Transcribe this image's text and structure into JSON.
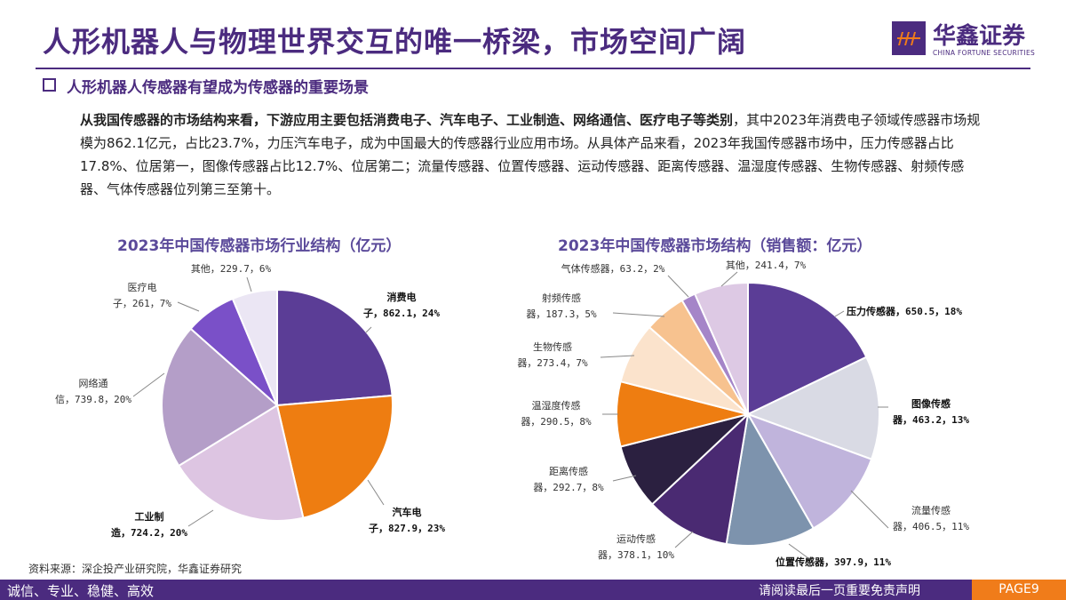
{
  "header": {
    "title": "人形机器人与物理世界交互的唯一桥梁，市场空间广阔",
    "logo_cn": "华鑫证券",
    "logo_en": "CHINA FORTUNE SECURITIES"
  },
  "subtitle": "人形机器人传感器有望成为传感器的重要场景",
  "body": {
    "bold": "从我国传感器的市场结构来看，下游应用主要包括消费电子、汽车电子、工业制造、网络通信、医疗电子等类别",
    "rest": "，其中2023年消费电子领域传感器市场规模为862.1亿元，占比23.7%，力压汽车电子，成为中国最大的传感器行业应用市场。从具体产品来看，2023年我国传感器市场中，压力传感器占比17.8%、位居第一，图像传感器占比12.7%、位居第二；流量传感器、位置传感器、运动传感器、距离传感器、温湿度传感器、生物传感器、射频传感器、气体传感器位列第三至第十。"
  },
  "chart_data": [
    {
      "type": "pie",
      "title": "2023年中国传感器市场行业结构（亿元）",
      "slices": [
        {
          "label": "消费电子",
          "value": 862.1,
          "pct": "24%",
          "text": [
            "消费电",
            "子，862.1，24%"
          ],
          "color": "#5b3d96"
        },
        {
          "label": "汽车电子",
          "value": 827.9,
          "pct": "23%",
          "text": [
            "汽车电",
            "子，827.9，23%"
          ],
          "color": "#ee7d11"
        },
        {
          "label": "工业制造",
          "value": 724.2,
          "pct": "20%",
          "text": [
            "工业制",
            "造，724.2，20%"
          ],
          "color": "#ddc5e2"
        },
        {
          "label": "网络通信",
          "value": 739.8,
          "pct": "20%",
          "text": [
            "网络通",
            "信，739.8，20%"
          ],
          "color": "#b49ec8"
        },
        {
          "label": "医疗电子",
          "value": 261,
          "pct": "7%",
          "text": [
            "医疗电",
            "子，261，7%"
          ],
          "color": "#7a50c8"
        },
        {
          "label": "其他",
          "value": 229.7,
          "pct": "6%",
          "text": [
            "其他，229.7，6%"
          ],
          "color": "#ebe6f4"
        }
      ]
    },
    {
      "type": "pie",
      "title": "2023年中国传感器市场结构（销售额：亿元）",
      "slices": [
        {
          "label": "压力传感器",
          "value": 650.5,
          "pct": "18%",
          "text": [
            "压力传感器，650.5，18%"
          ],
          "color": "#5b3d96"
        },
        {
          "label": "图像传感器",
          "value": 463.2,
          "pct": "13%",
          "text": [
            "图像传感",
            "器，463.2，13%"
          ],
          "color": "#d9dae4"
        },
        {
          "label": "流量传感器",
          "value": 406.5,
          "pct": "11%",
          "text": [
            "流量传感",
            "器，406.5，11%"
          ],
          "color": "#c0b4dc"
        },
        {
          "label": "位置传感器",
          "value": 397.9,
          "pct": "11%",
          "text": [
            "位置传感器，397.9，11%"
          ],
          "color": "#7d93ad"
        },
        {
          "label": "运动传感器",
          "value": 378.1,
          "pct": "10%",
          "text": [
            "运动传感",
            "器，378.1，10%"
          ],
          "color": "#4a2a72"
        },
        {
          "label": "距离传感器",
          "value": 292.7,
          "pct": "8%",
          "text": [
            "距离传感",
            "器，292.7，8%"
          ],
          "color": "#2b2040"
        },
        {
          "label": "温湿度传感器",
          "value": 290.5,
          "pct": "8%",
          "text": [
            "温湿度传感",
            "器，290.5，8%"
          ],
          "color": "#ee7d11"
        },
        {
          "label": "生物传感器",
          "value": 273.4,
          "pct": "7%",
          "text": [
            "生物传感",
            "器，273.4，7%"
          ],
          "color": "#fbe3cc"
        },
        {
          "label": "射频传感器",
          "value": 187.3,
          "pct": "5%",
          "text": [
            "射频传感",
            "器，187.3，5%"
          ],
          "color": "#f7c28f"
        },
        {
          "label": "气体传感器",
          "value": 63.2,
          "pct": "2%",
          "text": [
            "气体传感器，63.2，2%"
          ],
          "color": "#a585c8"
        },
        {
          "label": "其他",
          "value": 241.4,
          "pct": "7%",
          "text": [
            "其他，241.4，7%"
          ],
          "color": "#ddc9e4"
        }
      ]
    }
  ],
  "source": "资料来源：深企投产业研究院，华鑫证券研究",
  "footer": {
    "left": "诚信、专业、稳健、高效",
    "right": "请阅读最后一页重要免责声明",
    "page": "PAGE9"
  }
}
